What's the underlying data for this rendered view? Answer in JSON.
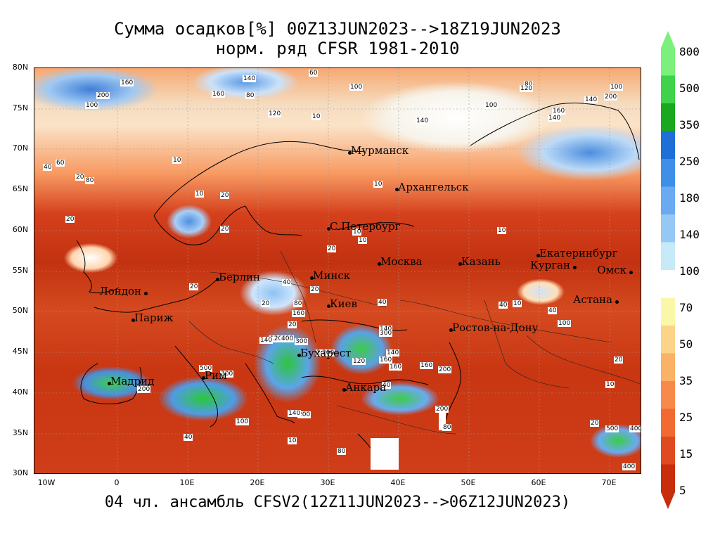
{
  "title": {
    "line1": "Сумма осадков[%] 00Z13JUN2023-->18Z19JUN2023",
    "line2": "норм. ряд CFSR 1981-2010",
    "bottom": "04 чл. ансамбль CFSV2(12Z11JUN2023-->06Z12JUN2023)"
  },
  "axes": {
    "lat_labels": [
      "80N",
      "75N",
      "70N",
      "65N",
      "60N",
      "55N",
      "50N",
      "45N",
      "40N",
      "35N",
      "30N"
    ],
    "lon_labels": [
      "10W",
      "0",
      "10E",
      "20E",
      "30E",
      "40E",
      "50E",
      "60E",
      "70E"
    ]
  },
  "colorbar": {
    "labels": [
      "800",
      "500",
      "350",
      "250",
      "180",
      "140",
      "100",
      "70",
      "50",
      "35",
      "25",
      "15",
      "5"
    ],
    "colors": [
      "#7cf07c",
      "#3ed34a",
      "#1aa81e",
      "#1f6fd8",
      "#3f8fe8",
      "#6aaaf0",
      "#96c8f5",
      "#c6eaf8",
      "#ffffff",
      "#fbf7a8",
      "#fbd48a",
      "#f9b266",
      "#f78a4a",
      "#f06a32",
      "#e04a20",
      "#c82e0c"
    ]
  },
  "cities": [
    {
      "name": "Мурманск"
    },
    {
      "name": "Архангельск"
    },
    {
      "name": "С.Петербург"
    },
    {
      "name": "Москва"
    },
    {
      "name": "Казань"
    },
    {
      "name": "Екатеринбург"
    },
    {
      "name": "Курган"
    },
    {
      "name": "Омск"
    },
    {
      "name": "Астана"
    },
    {
      "name": "Минск"
    },
    {
      "name": "Киев"
    },
    {
      "name": "Берлин"
    },
    {
      "name": "Лондон"
    },
    {
      "name": "Париж"
    },
    {
      "name": "Ростов-на-Дону"
    },
    {
      "name": "Бухарест"
    },
    {
      "name": "Анкара"
    },
    {
      "name": "Рим"
    },
    {
      "name": "Мадрид"
    }
  ],
  "contour_labels": [
    "60",
    "100",
    "160",
    "140",
    "200",
    "160",
    "80",
    "100",
    "120",
    "140",
    "100",
    "80",
    "140",
    "200",
    "100",
    "120",
    "160",
    "140",
    "10",
    "20",
    "60",
    "40",
    "80",
    "20",
    "10",
    "20",
    "10",
    "10",
    "20",
    "20",
    "10",
    "10",
    "10",
    "20",
    "20",
    "40",
    "20",
    "80",
    "20",
    "40",
    "120",
    "10",
    "40",
    "140",
    "140",
    "160",
    "200",
    "400",
    "300",
    "300",
    "200",
    "140",
    "160",
    "120",
    "200",
    "500",
    "300",
    "200",
    "100",
    "40",
    "140",
    "160",
    "200",
    "40",
    "20",
    "10",
    "40",
    "100",
    "160",
    "500",
    "400",
    "400",
    "20",
    "200",
    "80",
    "80",
    "10"
  ]
}
